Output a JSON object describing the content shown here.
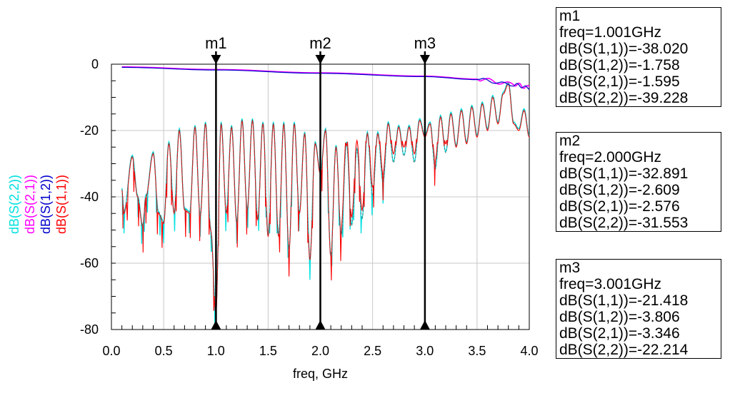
{
  "chart_data": {
    "type": "line",
    "xlabel": "freq, GHz",
    "xlim": [
      0.0,
      4.0
    ],
    "ylim": [
      -80,
      0
    ],
    "xticks": [
      "0.0",
      "0.5",
      "1.0",
      "1.5",
      "2.0",
      "2.5",
      "3.0",
      "3.5",
      "4.0"
    ],
    "yticks": [
      "0",
      "-20",
      "-40",
      "-60",
      "-80"
    ],
    "grid": true,
    "series": [
      {
        "name": "dB(S(1,1))",
        "color": "#ff0000"
      },
      {
        "name": "dB(S(1,2))",
        "color": "#0000cc"
      },
      {
        "name": "dB(S(2,1))",
        "color": "#ff00ff"
      },
      {
        "name": "dB(S(2,2))",
        "color": "#00e0e0"
      }
    ],
    "insertion_loss": {
      "x": [
        0.1,
        1.001,
        2.0,
        3.001,
        3.5,
        3.85,
        4.0
      ],
      "y": [
        -0.8,
        -1.6,
        -2.6,
        -3.6,
        -4.5,
        -6.0,
        -7.0
      ]
    },
    "return_loss": {
      "x": [
        0.1,
        0.12,
        0.2,
        0.25,
        0.3,
        0.33,
        0.4,
        0.45,
        0.5,
        0.55,
        0.6,
        0.65,
        0.7,
        0.75,
        0.8,
        0.85,
        0.9,
        0.95,
        1.0,
        1.05,
        1.1,
        1.15,
        1.2,
        1.25,
        1.3,
        1.35,
        1.4,
        1.45,
        1.5,
        1.55,
        1.6,
        1.65,
        1.7,
        1.75,
        1.8,
        1.85,
        1.9,
        1.95,
        2.0,
        2.05,
        2.1,
        2.15,
        2.2,
        2.25,
        2.3,
        2.35,
        2.4,
        2.45,
        2.5,
        2.55,
        2.6,
        2.65,
        2.7,
        2.75,
        2.8,
        2.85,
        2.9,
        2.95,
        3.0,
        3.05,
        3.1,
        3.15,
        3.2,
        3.25,
        3.3,
        3.35,
        3.4,
        3.45,
        3.5,
        3.55,
        3.6,
        3.65,
        3.7,
        3.75,
        3.8,
        3.85,
        3.9,
        3.95,
        4.0
      ],
      "y": [
        -38,
        -45,
        -28,
        -40,
        -49,
        -40,
        -27,
        -45,
        -48,
        -24,
        -45,
        -20,
        -44,
        -45,
        -19,
        -46,
        -18,
        -50,
        -75,
        -18,
        -45,
        -19,
        -48,
        -17,
        -44,
        -17,
        -47,
        -18,
        -52,
        -18,
        -52,
        -18,
        -56,
        -18,
        -45,
        -21,
        -59,
        -24,
        -33,
        -20,
        -58,
        -25,
        -52,
        -24,
        -49,
        -26,
        -47,
        -21,
        -40,
        -21,
        -36,
        -18,
        -30,
        -19,
        -28,
        -19,
        -30,
        -17,
        -22,
        -18,
        -32,
        -16,
        -27,
        -15,
        -25,
        -14,
        -24,
        -13,
        -22,
        -12,
        -20,
        -10,
        -18,
        -9,
        -6,
        -18,
        -20,
        -14,
        -22
      ]
    },
    "markers": [
      {
        "name": "m1",
        "x": 1.001
      },
      {
        "name": "m2",
        "x": 2.0
      },
      {
        "name": "m3",
        "x": 3.001
      }
    ]
  },
  "marker_boxes": [
    {
      "lines": [
        "m1",
        "freq=1.001GHz",
        "dB(S(1,1))=-38.020",
        "dB(S(1,2))=-1.758",
        "dB(S(2,1))=-1.595",
        "dB(S(2,2))=-39.228"
      ]
    },
    {
      "lines": [
        "m2",
        "freq=2.000GHz",
        "dB(S(1,1))=-32.891",
        "dB(S(1,2))=-2.609",
        "dB(S(2,1))=-2.576",
        "dB(S(2,2))=-31.553"
      ]
    },
    {
      "lines": [
        "m3",
        "freq=3.001GHz",
        "dB(S(1,1))=-21.418",
        "dB(S(1,2))=-3.806",
        "dB(S(2,1))=-3.346",
        "dB(S(2,2))=-22.214"
      ]
    }
  ]
}
